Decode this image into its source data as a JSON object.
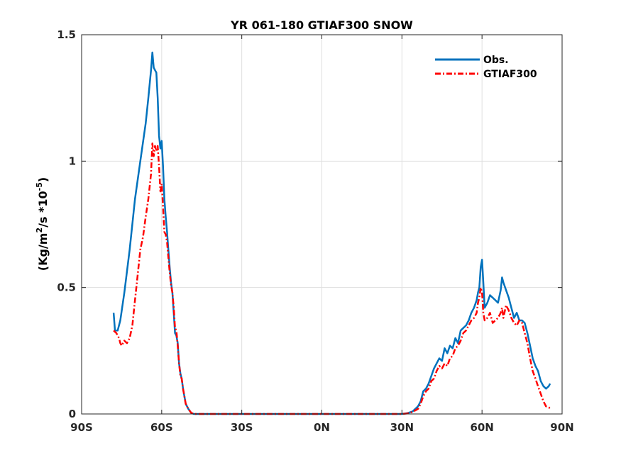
{
  "chart_data": {
    "type": "line",
    "title": "YR 061-180 GTIAF300 SNOW",
    "ylabel_parts": {
      "base": "(Kg/m",
      "sup1": "2",
      "mid": "/s *10",
      "sup2": "-5",
      "end": ")"
    },
    "xlim": [
      -90,
      90
    ],
    "ylim": [
      0,
      1.5
    ],
    "grid": true,
    "legend_position": "top-right",
    "x_ticks": [
      {
        "value": -90,
        "label": "90S"
      },
      {
        "value": -60,
        "label": "60S"
      },
      {
        "value": -30,
        "label": "30S"
      },
      {
        "value": 0,
        "label": "0N"
      },
      {
        "value": 30,
        "label": "30N"
      },
      {
        "value": 60,
        "label": "60N"
      },
      {
        "value": 90,
        "label": "90N"
      }
    ],
    "y_ticks": [
      {
        "value": 0,
        "label": "0"
      },
      {
        "value": 0.5,
        "label": "0.5"
      },
      {
        "value": 1,
        "label": "1"
      },
      {
        "value": 1.5,
        "label": "1.5"
      }
    ],
    "series": [
      {
        "name": "Obs.",
        "color": "#0072BD",
        "style": "solid",
        "points": [
          [
            -78,
            0.4
          ],
          [
            -77.5,
            0.33
          ],
          [
            -76.5,
            0.33
          ],
          [
            -75.5,
            0.37
          ],
          [
            -74,
            0.48
          ],
          [
            -72,
            0.65
          ],
          [
            -70,
            0.85
          ],
          [
            -68,
            1.0
          ],
          [
            -66,
            1.15
          ],
          [
            -65,
            1.25
          ],
          [
            -64,
            1.36
          ],
          [
            -63.5,
            1.43
          ],
          [
            -63,
            1.37
          ],
          [
            -62.5,
            1.36
          ],
          [
            -62,
            1.35
          ],
          [
            -61.5,
            1.25
          ],
          [
            -61,
            1.1
          ],
          [
            -60.5,
            1.05
          ],
          [
            -60,
            1.08
          ],
          [
            -59.5,
            0.98
          ],
          [
            -59,
            0.85
          ],
          [
            -58.5,
            0.78
          ],
          [
            -58,
            0.72
          ],
          [
            -57.5,
            0.65
          ],
          [
            -57,
            0.58
          ],
          [
            -56.5,
            0.52
          ],
          [
            -56,
            0.48
          ],
          [
            -55.5,
            0.4
          ],
          [
            -55,
            0.32
          ],
          [
            -54.5,
            0.31
          ],
          [
            -54,
            0.28
          ],
          [
            -53.5,
            0.2
          ],
          [
            -53,
            0.16
          ],
          [
            -52.5,
            0.14
          ],
          [
            -52,
            0.1
          ],
          [
            -51.5,
            0.07
          ],
          [
            -51,
            0.04
          ],
          [
            -50,
            0.02
          ],
          [
            -49,
            0.005
          ],
          [
            -48,
            0
          ],
          [
            -40,
            0
          ],
          [
            -20,
            0
          ],
          [
            0,
            0
          ],
          [
            20,
            0
          ],
          [
            30,
            0
          ],
          [
            32,
            0.003
          ],
          [
            34,
            0.01
          ],
          [
            36,
            0.03
          ],
          [
            37,
            0.05
          ],
          [
            38,
            0.09
          ],
          [
            39,
            0.1
          ],
          [
            40,
            0.12
          ],
          [
            41,
            0.15
          ],
          [
            42,
            0.18
          ],
          [
            43,
            0.2
          ],
          [
            44,
            0.22
          ],
          [
            45,
            0.21
          ],
          [
            46,
            0.26
          ],
          [
            47,
            0.24
          ],
          [
            48,
            0.27
          ],
          [
            49,
            0.26
          ],
          [
            50,
            0.3
          ],
          [
            51,
            0.28
          ],
          [
            52,
            0.33
          ],
          [
            53,
            0.34
          ],
          [
            54,
            0.35
          ],
          [
            55,
            0.37
          ],
          [
            56,
            0.4
          ],
          [
            57,
            0.42
          ],
          [
            58,
            0.45
          ],
          [
            58.5,
            0.48
          ],
          [
            59,
            0.5
          ],
          [
            59.5,
            0.58
          ],
          [
            60,
            0.61
          ],
          [
            60.5,
            0.52
          ],
          [
            61,
            0.42
          ],
          [
            62,
            0.44
          ],
          [
            63,
            0.47
          ],
          [
            64,
            0.46
          ],
          [
            65,
            0.45
          ],
          [
            66,
            0.44
          ],
          [
            67,
            0.49
          ],
          [
            67.5,
            0.54
          ],
          [
            68,
            0.52
          ],
          [
            69,
            0.49
          ],
          [
            70,
            0.46
          ],
          [
            71,
            0.42
          ],
          [
            72,
            0.38
          ],
          [
            73,
            0.4
          ],
          [
            74,
            0.37
          ],
          [
            75,
            0.37
          ],
          [
            76,
            0.36
          ],
          [
            77,
            0.32
          ],
          [
            78,
            0.27
          ],
          [
            79,
            0.22
          ],
          [
            80,
            0.19
          ],
          [
            81,
            0.17
          ],
          [
            82,
            0.13
          ],
          [
            83,
            0.11
          ],
          [
            84,
            0.1
          ],
          [
            85,
            0.11
          ],
          [
            85.5,
            0.12
          ]
        ]
      },
      {
        "name": "GTIAF300",
        "color": "#FF0000",
        "style": "dashed",
        "points": [
          [
            -78,
            0.33
          ],
          [
            -77,
            0.32
          ],
          [
            -76,
            0.3
          ],
          [
            -75.5,
            0.28
          ],
          [
            -75,
            0.27
          ],
          [
            -74,
            0.29
          ],
          [
            -73,
            0.28
          ],
          [
            -72,
            0.3
          ],
          [
            -71,
            0.35
          ],
          [
            -70,
            0.45
          ],
          [
            -69,
            0.55
          ],
          [
            -68,
            0.65
          ],
          [
            -67,
            0.7
          ],
          [
            -66,
            0.78
          ],
          [
            -65,
            0.85
          ],
          [
            -64,
            0.95
          ],
          [
            -63.5,
            1.07
          ],
          [
            -63,
            1.02
          ],
          [
            -62.5,
            1.06
          ],
          [
            -62,
            1.04
          ],
          [
            -61.5,
            1.06
          ],
          [
            -61,
            0.98
          ],
          [
            -60.5,
            0.88
          ],
          [
            -60,
            0.91
          ],
          [
            -59.5,
            0.82
          ],
          [
            -59,
            0.72
          ],
          [
            -58.5,
            0.71
          ],
          [
            -58,
            0.68
          ],
          [
            -57.5,
            0.62
          ],
          [
            -57,
            0.56
          ],
          [
            -56.5,
            0.51
          ],
          [
            -56,
            0.48
          ],
          [
            -55.5,
            0.42
          ],
          [
            -55,
            0.34
          ],
          [
            -54.5,
            0.33
          ],
          [
            -54,
            0.27
          ],
          [
            -53.5,
            0.2
          ],
          [
            -53,
            0.15
          ],
          [
            -52.5,
            0.14
          ],
          [
            -52,
            0.1
          ],
          [
            -51.5,
            0.07
          ],
          [
            -51,
            0.04
          ],
          [
            -50,
            0.02
          ],
          [
            -49,
            0.005
          ],
          [
            -48,
            0
          ],
          [
            -40,
            0
          ],
          [
            -20,
            0
          ],
          [
            0,
            0
          ],
          [
            20,
            0
          ],
          [
            30,
            0
          ],
          [
            32,
            0.002
          ],
          [
            34,
            0.008
          ],
          [
            36,
            0.02
          ],
          [
            37,
            0.04
          ],
          [
            38,
            0.07
          ],
          [
            39,
            0.09
          ],
          [
            40,
            0.1
          ],
          [
            41,
            0.13
          ],
          [
            42,
            0.14
          ],
          [
            43,
            0.17
          ],
          [
            44,
            0.19
          ],
          [
            45,
            0.18
          ],
          [
            46,
            0.2
          ],
          [
            47,
            0.19
          ],
          [
            48,
            0.22
          ],
          [
            49,
            0.23
          ],
          [
            50,
            0.26
          ],
          [
            51,
            0.27
          ],
          [
            52,
            0.29
          ],
          [
            53,
            0.32
          ],
          [
            54,
            0.33
          ],
          [
            55,
            0.35
          ],
          [
            56,
            0.37
          ],
          [
            57,
            0.38
          ],
          [
            58,
            0.4
          ],
          [
            58.5,
            0.44
          ],
          [
            59,
            0.46
          ],
          [
            59.5,
            0.5
          ],
          [
            60,
            0.48
          ],
          [
            60.5,
            0.4
          ],
          [
            61,
            0.37
          ],
          [
            62,
            0.38
          ],
          [
            63,
            0.4
          ],
          [
            64,
            0.36
          ],
          [
            65,
            0.37
          ],
          [
            66,
            0.38
          ],
          [
            67,
            0.4
          ],
          [
            67.5,
            0.42
          ],
          [
            68,
            0.38
          ],
          [
            69,
            0.43
          ],
          [
            70,
            0.41
          ],
          [
            71,
            0.38
          ],
          [
            72,
            0.36
          ],
          [
            73,
            0.35
          ],
          [
            74,
            0.37
          ],
          [
            75,
            0.36
          ],
          [
            76,
            0.32
          ],
          [
            77,
            0.28
          ],
          [
            78,
            0.22
          ],
          [
            79,
            0.17
          ],
          [
            80,
            0.14
          ],
          [
            81,
            0.11
          ],
          [
            82,
            0.08
          ],
          [
            83,
            0.05
          ],
          [
            84,
            0.03
          ],
          [
            85,
            0.025
          ],
          [
            85.5,
            0.025
          ]
        ]
      }
    ]
  }
}
